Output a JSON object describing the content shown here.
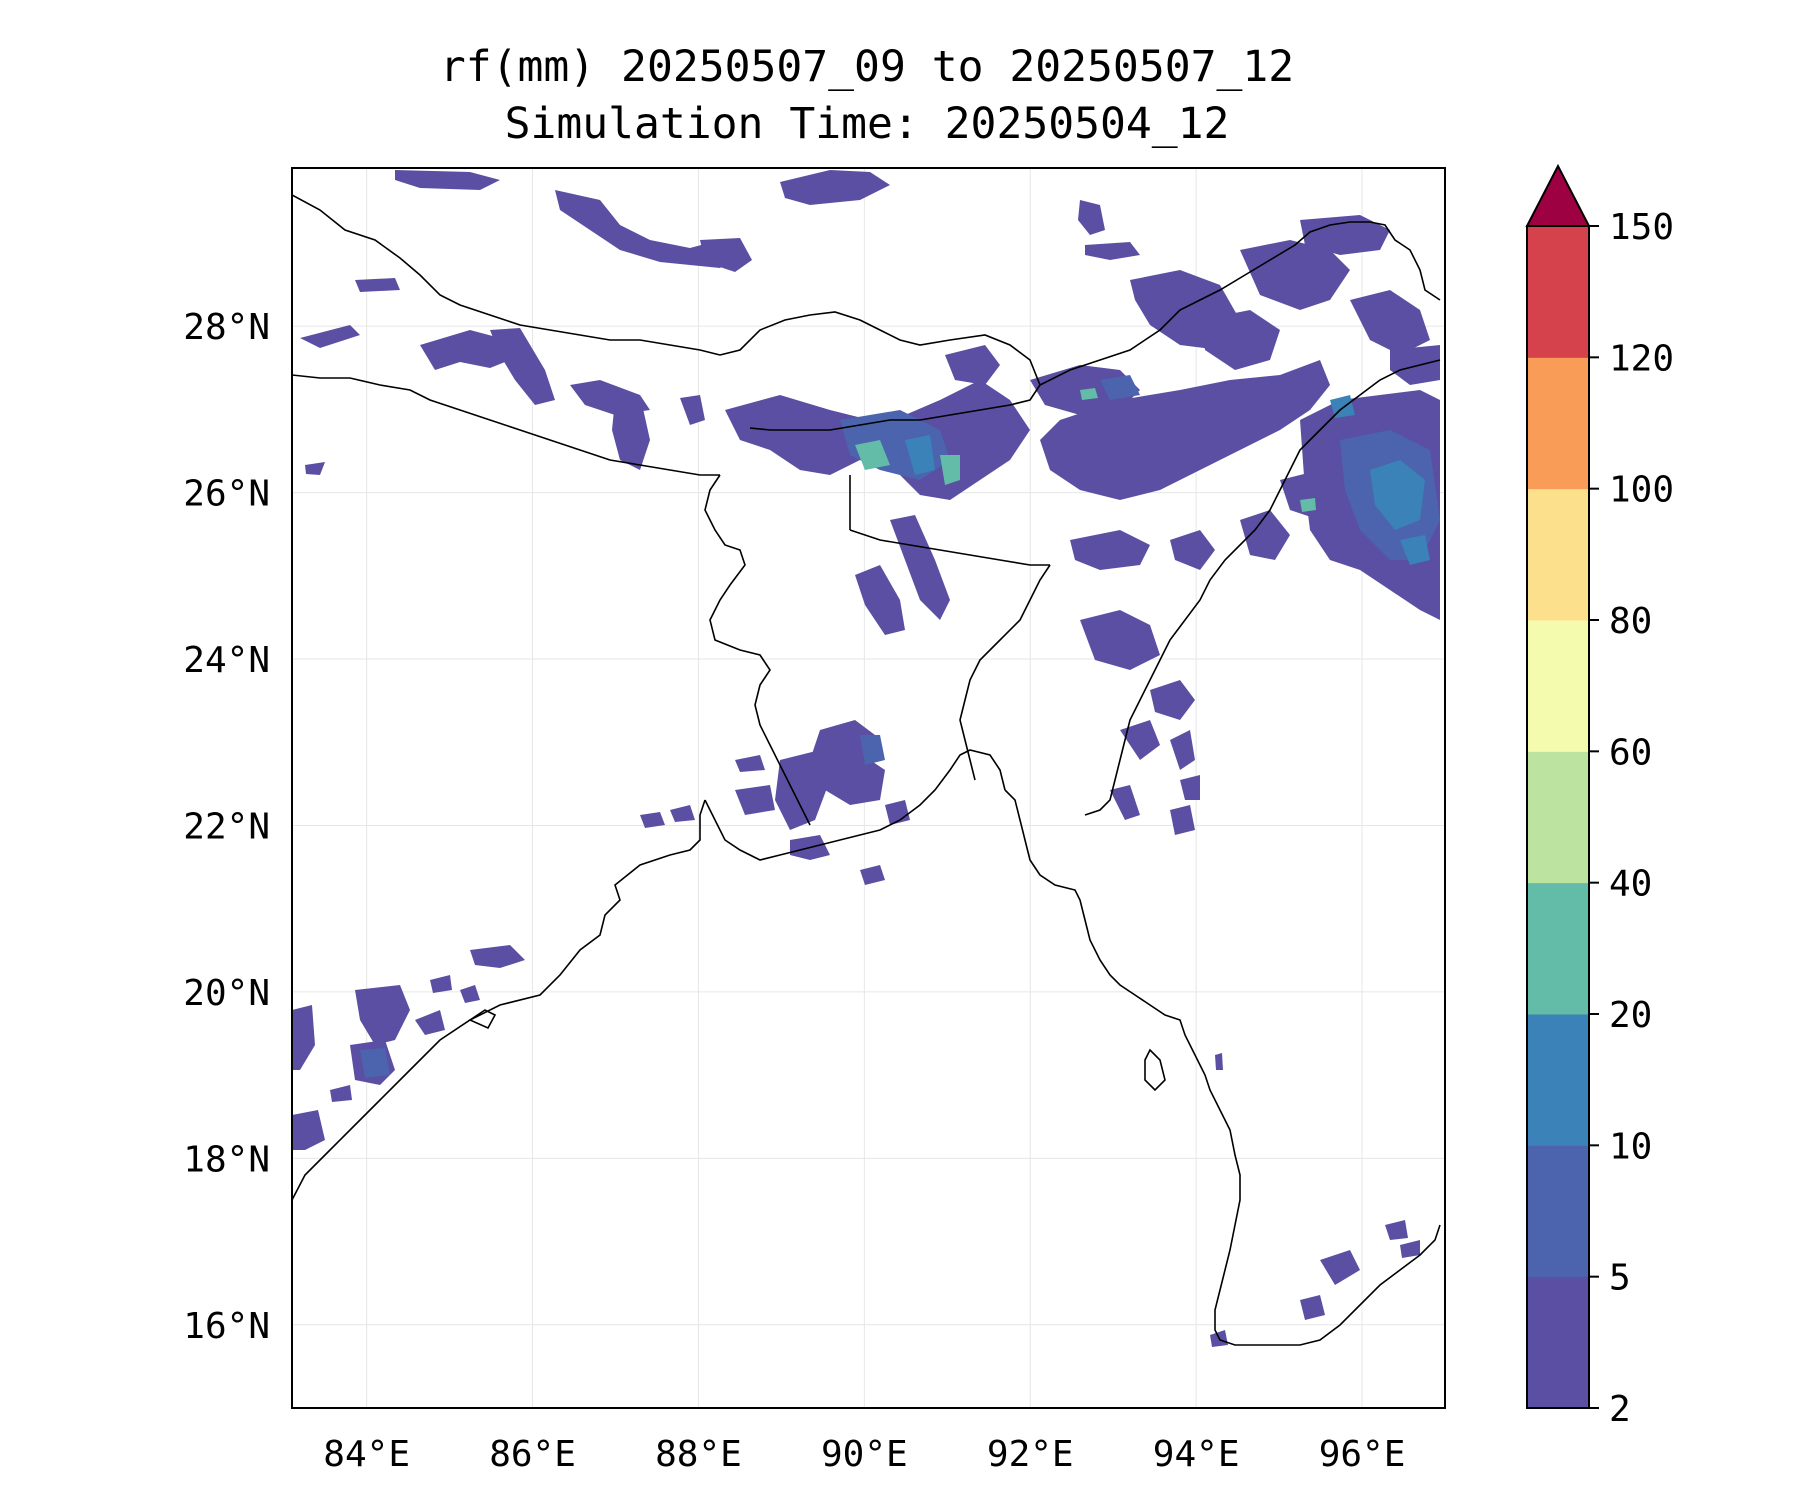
{
  "title": {
    "line1": "rf(mm) 20250507_09 to 20250507_12",
    "line2": "Simulation Time: 20250504_12"
  },
  "map": {
    "lon_range": [
      83.1,
      97.0
    ],
    "lat_range": [
      15.0,
      29.9
    ],
    "lon_ticks": [
      84,
      86,
      88,
      90,
      92,
      94,
      96
    ],
    "lat_ticks": [
      16,
      18,
      20,
      22,
      24,
      26,
      28
    ],
    "lon_tick_labels": [
      "84°E",
      "86°E",
      "88°E",
      "90°E",
      "92°E",
      "94°E",
      "96°E"
    ],
    "lat_tick_labels": [
      "16°N",
      "18°N",
      "20°N",
      "22°N",
      "24°N",
      "26°N",
      "28°N"
    ],
    "gridlines": true
  },
  "colorbar": {
    "levels": [
      2,
      5,
      10,
      20,
      40,
      60,
      80,
      100,
      120,
      150
    ],
    "tick_labels": [
      "2",
      "5",
      "10",
      "20",
      "40",
      "60",
      "80",
      "100",
      "120",
      "150"
    ],
    "colors": [
      "#5a4fa2",
      "#4b64ad",
      "#3b82b8",
      "#63bca8",
      "#bde3a1",
      "#f4fbaf",
      "#fde08b",
      "#f89c58",
      "#d6424c"
    ],
    "extend_color": "#9e0142",
    "extend": "max"
  }
}
